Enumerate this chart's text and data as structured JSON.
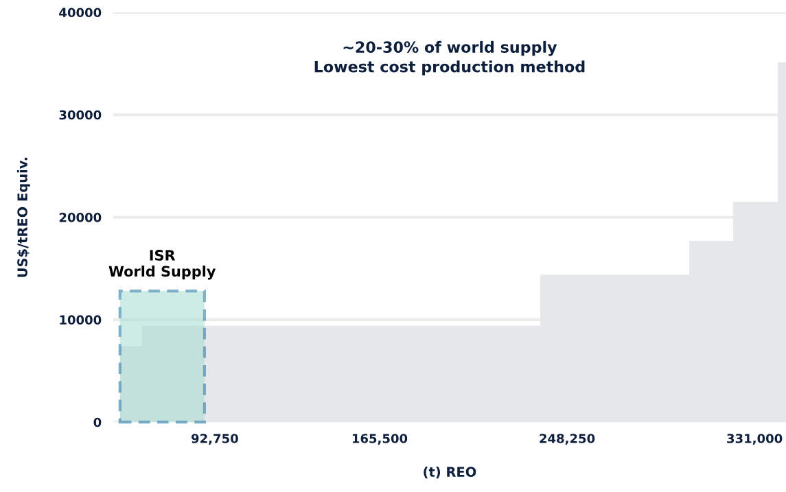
{
  "chart_data": {
    "type": "area",
    "title": "~20-30% of world supply\nLowest cost production method",
    "xlabel": "(t) REO",
    "ylabel": "US$/tREO Equiv.",
    "x": [
      50900,
      60600,
      60600,
      236400,
      236400,
      302200,
      302200,
      321600,
      321600,
      341300,
      341300,
      344900
    ],
    "series": [
      {
        "color": "#e6e7eb",
        "values": [
          7400,
          7400,
          9400,
          9400,
          14400,
          14400,
          17700,
          17700,
          21500,
          21500,
          35100,
          35100
        ]
      }
    ],
    "xlim": [
      47900,
      344900
    ],
    "xticks": [
      {
        "value": 92750,
        "label": "92,750"
      },
      {
        "value": 165500,
        "label": "165,500"
      },
      {
        "value": 248250,
        "label": "248,250"
      },
      {
        "value": 331000,
        "label": "331,000"
      }
    ],
    "ylim": [
      0,
      40000
    ],
    "yticks": [
      0,
      10000,
      20000,
      30000,
      40000
    ],
    "grid": "y",
    "bands": [
      {
        "axis": "x",
        "from": 50900,
        "to": 88200,
        "color": "#a6ddd2"
      }
    ],
    "annotations": [
      {
        "text": "ISR\nWorld Supply",
        "x": 69500,
        "y": 12800
      }
    ]
  }
}
